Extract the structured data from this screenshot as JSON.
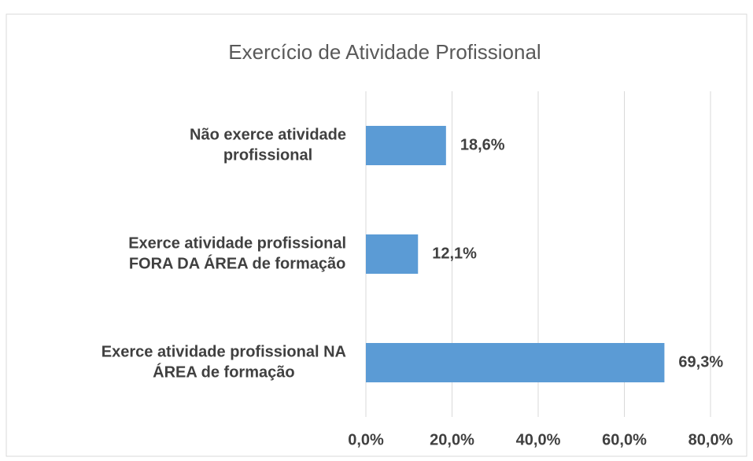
{
  "chart_data": {
    "type": "barh",
    "title": "Exercício de Atividade Profissional",
    "categories": [
      [
        "Não exerce atividade",
        "profissional"
      ],
      [
        "Exerce atividade profissional",
        "FORA DA ÁREA de formação"
      ],
      [
        "Exerce atividade profissional NA",
        "ÁREA de formação"
      ]
    ],
    "values": [
      18.6,
      12.1,
      69.3
    ],
    "value_labels": [
      "18,6%",
      "12,1%",
      "69,3%"
    ],
    "color": "#5b9bd5",
    "xlim": [
      0,
      80
    ],
    "xticks": [
      {
        "value": 0,
        "label": "0,0%"
      },
      {
        "value": 20,
        "label": "20,0%"
      },
      {
        "value": 40,
        "label": "40,0%"
      },
      {
        "value": 60,
        "label": "60,0%"
      },
      {
        "value": 80,
        "label": "80,0%"
      }
    ],
    "grid": true
  }
}
